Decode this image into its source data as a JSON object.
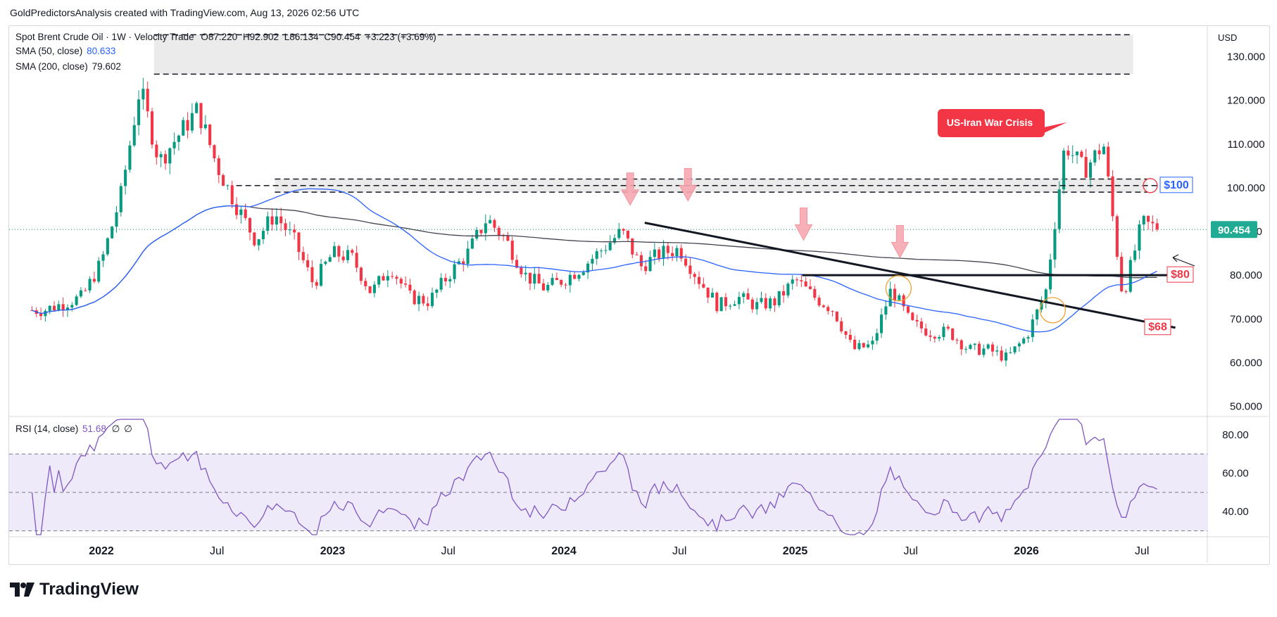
{
  "header": {
    "attribution": "GoldPredictorsAnalysis created with TradingView.com, Aug 13, 2026 02:56 UTC"
  },
  "legend": {
    "symbol": "Spot Brent Crude Oil · 1W · Velocity Trade",
    "open": "O87.220",
    "high": "H92.902",
    "low": "L86.134",
    "close": "C90.454",
    "change": "+3.223 (+3.69%)",
    "sma50_label": "SMA (50, close)",
    "sma50_value": "80.633",
    "sma200_label": "SMA (200, close)",
    "sma200_value": "79.602",
    "rsi_label": "RSI (14, close)",
    "rsi_value": "51.68",
    "rsi_extra1": "∅",
    "rsi_extra2": "∅"
  },
  "currency": "USD",
  "brand": "TradingView",
  "annotations": {
    "event_label": "US-Iran War Crisis",
    "level_100": "$100",
    "level_80": "$80",
    "level_68": "$68",
    "last_price": "90.454"
  },
  "colors": {
    "up": "#089981",
    "down": "#f23645",
    "sma50": "#2962ff",
    "sma200": "#434651",
    "rsi": "#7e57c2",
    "rsi_band": "#efeafa",
    "price_tag": "#22ab94",
    "red_label": "#f23645",
    "blue_label": "#2962ff"
  },
  "chart_data": {
    "type": "candlestick",
    "title": "Spot Brent Crude Oil · 1W · Velocity Trade",
    "x_axis_labels": [
      "2022",
      "Jul",
      "2023",
      "Jul",
      "2024",
      "Jul",
      "2025",
      "Jul",
      "2026",
      "Jul"
    ],
    "y_axis_ticks": [
      50,
      60,
      70,
      80,
      90,
      100,
      110,
      120,
      130
    ],
    "ylim": [
      48,
      137
    ],
    "rsi_ticks": [
      40,
      60,
      80
    ],
    "rsi_ylim": [
      28,
      88
    ],
    "rsi_levels": [
      30,
      50,
      70
    ],
    "last": 90.454,
    "sma50_last": 80.633,
    "sma200_last": 79.602,
    "rsi_last": 51.68,
    "resistance_zones": [
      [
        126,
        135
      ],
      [
        99,
        102
      ]
    ],
    "horizontal_levels": [
      100,
      80
    ],
    "trendline_from": [
      "2024-03",
      92
    ],
    "trendline_to": [
      "2026-08",
      68
    ],
    "anchor_points": [
      [
        "2021-10",
        72
      ],
      [
        "2021-12",
        75
      ],
      [
        "2022-01",
        83
      ],
      [
        "2022-02",
        98
      ],
      [
        "2022-03",
        123
      ],
      [
        "2022-04",
        106
      ],
      [
        "2022-05",
        112
      ],
      [
        "2022-06",
        118
      ],
      [
        "2022-07",
        105
      ],
      [
        "2022-08",
        96
      ],
      [
        "2022-09",
        88
      ],
      [
        "2022-10",
        94
      ],
      [
        "2022-11",
        88
      ],
      [
        "2022-12",
        78
      ],
      [
        "2023-01",
        85
      ],
      [
        "2023-02",
        84
      ],
      [
        "2023-03",
        76
      ],
      [
        "2023-04",
        82
      ],
      [
        "2023-05",
        75
      ],
      [
        "2023-06",
        74
      ],
      [
        "2023-07",
        80
      ],
      [
        "2023-08",
        85
      ],
      [
        "2023-09",
        93
      ],
      [
        "2023-10",
        88
      ],
      [
        "2023-11",
        80
      ],
      [
        "2023-12",
        77
      ],
      [
        "2024-01",
        79
      ],
      [
        "2024-02",
        82
      ],
      [
        "2024-03",
        86
      ],
      [
        "2024-04",
        90
      ],
      [
        "2024-05",
        82
      ],
      [
        "2024-06",
        85
      ],
      [
        "2024-07",
        86
      ],
      [
        "2024-08",
        79
      ],
      [
        "2024-09",
        73
      ],
      [
        "2024-10",
        75
      ],
      [
        "2024-11",
        73
      ],
      [
        "2024-12",
        74
      ],
      [
        "2025-01",
        79
      ],
      [
        "2025-02",
        75
      ],
      [
        "2025-03",
        72
      ],
      [
        "2025-04",
        63
      ],
      [
        "2025-05",
        64
      ],
      [
        "2025-06",
        77
      ],
      [
        "2025-07",
        69
      ],
      [
        "2025-08",
        67
      ],
      [
        "2025-09",
        67
      ],
      [
        "2025-10",
        63
      ],
      [
        "2025-11",
        63
      ],
      [
        "2025-12",
        61
      ],
      [
        "2026-01",
        66
      ],
      [
        "2026-02",
        76
      ],
      [
        "2026-03",
        110
      ],
      [
        "2026-04",
        104
      ],
      [
        "2026-05",
        110
      ],
      [
        "2026-06",
        75
      ],
      [
        "2026-07",
        92
      ],
      [
        "2026-08",
        90.454
      ]
    ]
  }
}
